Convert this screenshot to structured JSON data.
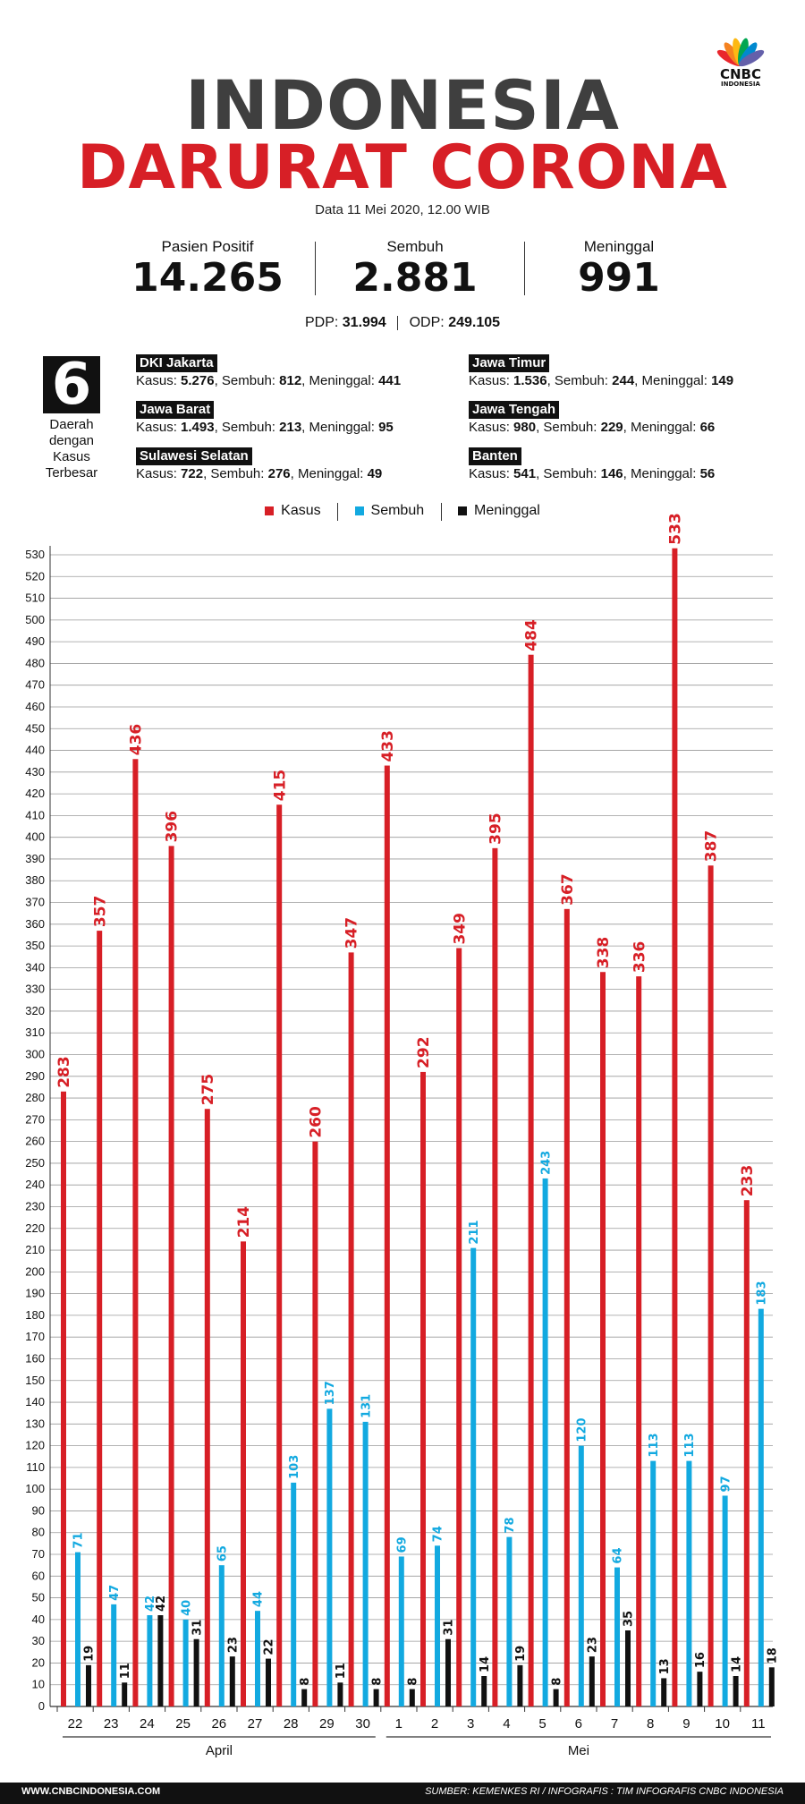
{
  "brand": {
    "logo_line1": "CNBC",
    "logo_line2": "INDONESIA"
  },
  "title": {
    "line1": "INDONESIA",
    "line2": "DARURAT CORONA"
  },
  "date": "Data 11 Mei 2020, 12.00 WIB",
  "stats": [
    {
      "label": "Pasien Positif",
      "value": "14.265"
    },
    {
      "label": "Sembuh",
      "value": "2.881"
    },
    {
      "label": "Meninggal",
      "value": "991"
    }
  ],
  "pdp": {
    "label": "PDP:",
    "value": "31.994"
  },
  "odp": {
    "label": "ODP:",
    "value": "249.105"
  },
  "regions_box": {
    "number": "6",
    "caption": [
      "Daerah",
      "dengan",
      "Kasus",
      "Terbesar"
    ]
  },
  "regions": [
    {
      "name": "DKI Jakarta",
      "kasus": "5.276",
      "sembuh": "812",
      "meninggal": "441"
    },
    {
      "name": "Jawa Barat",
      "kasus": "1.493",
      "sembuh": "213",
      "meninggal": "95"
    },
    {
      "name": "Sulawesi Selatan",
      "kasus": "722",
      "sembuh": "276",
      "meninggal": "49"
    },
    {
      "name": "Jawa Timur",
      "kasus": "1.536",
      "sembuh": "244",
      "meninggal": "149"
    },
    {
      "name": "Jawa Tengah",
      "kasus": "980",
      "sembuh": "229",
      "meninggal": "66"
    },
    {
      "name": "Banten",
      "kasus": "541",
      "sembuh": "146",
      "meninggal": "56"
    }
  ],
  "region_labels": {
    "kasus": "Kasus:",
    "sembuh": "Sembuh:",
    "meninggal": "Meninggal:"
  },
  "colors": {
    "kasus": "#d71f26",
    "sembuh": "#12a9e0",
    "meninggal": "#111111",
    "title_gray": "#3f3f3f"
  },
  "chart_data": {
    "type": "bar",
    "categories": [
      "22",
      "23",
      "24",
      "25",
      "26",
      "27",
      "28",
      "29",
      "30",
      "1",
      "2",
      "3",
      "4",
      "5",
      "6",
      "7",
      "8",
      "9",
      "10",
      "11"
    ],
    "month_groups": [
      {
        "label": "April",
        "count": 9
      },
      {
        "label": "Mei",
        "count": 11
      }
    ],
    "series": [
      {
        "name": "Kasus",
        "color": "#d71f26",
        "values": [
          283,
          357,
          436,
          396,
          275,
          214,
          415,
          260,
          347,
          433,
          292,
          349,
          395,
          484,
          367,
          338,
          336,
          533,
          387,
          233
        ]
      },
      {
        "name": "Sembuh",
        "color": "#12a9e0",
        "values": [
          71,
          47,
          42,
          40,
          65,
          44,
          103,
          137,
          131,
          69,
          74,
          211,
          78,
          243,
          120,
          64,
          113,
          113,
          97,
          183
        ]
      },
      {
        "name": "Meninggal",
        "color": "#111111",
        "values": [
          19,
          11,
          42,
          31,
          23,
          22,
          8,
          11,
          8,
          8,
          31,
          14,
          19,
          8,
          23,
          35,
          13,
          16,
          14,
          18
        ]
      }
    ],
    "ylim": [
      0,
      530
    ],
    "ytick_step": 10,
    "grid": true,
    "legend": "top-center"
  },
  "footer": {
    "left": "WWW.CNBCINDONESIA.COM",
    "right": "SUMBER: KEMENKES RI  /  INFOGRAFIS : TIM INFOGRAFIS CNBC INDONESIA"
  }
}
